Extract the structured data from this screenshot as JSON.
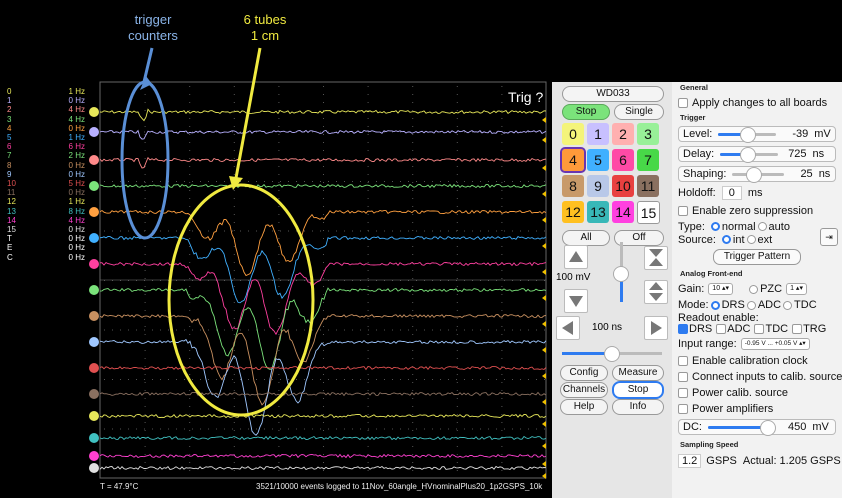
{
  "annotations": {
    "trigger_counters": [
      "trigger",
      "counters"
    ],
    "tubes": [
      "6 tubes",
      "1 cm"
    ]
  },
  "rates": [
    {
      "ch": "0",
      "val": "1 Hz",
      "color": "#e8e85a"
    },
    {
      "ch": "1",
      "val": "0 Hz",
      "color": "#b8b0ff"
    },
    {
      "ch": "2",
      "val": "4 Hz",
      "color": "#ff8a8a"
    },
    {
      "ch": "3",
      "val": "4 Hz",
      "color": "#7be37b"
    },
    {
      "ch": "4",
      "val": "0 Hz",
      "color": "#ffa040"
    },
    {
      "ch": "5",
      "val": "1 Hz",
      "color": "#40b0ff"
    },
    {
      "ch": "6",
      "val": "6 Hz",
      "color": "#ff40a0"
    },
    {
      "ch": "7",
      "val": "2 Hz",
      "color": "#7be37b"
    },
    {
      "ch": "8",
      "val": "0 Hz",
      "color": "#c89060"
    },
    {
      "ch": "9",
      "val": "0 Hz",
      "color": "#a0c8ff"
    },
    {
      "ch": "10",
      "val": "5 Hz",
      "color": "#e05050"
    },
    {
      "ch": "11",
      "val": "0 Hz",
      "color": "#8a7060"
    },
    {
      "ch": "12",
      "val": "1 Hz",
      "color": "#e8e85a"
    },
    {
      "ch": "13",
      "val": "8 Hz",
      "color": "#40c0c0"
    },
    {
      "ch": "14",
      "val": "4 Hz",
      "color": "#ff40d0"
    },
    {
      "ch": "15",
      "val": "0 Hz",
      "color": "#e0e0e0"
    },
    {
      "ch": "T",
      "val": "0 Hz",
      "color": "#ffffff"
    },
    {
      "ch": "E",
      "val": "0 Hz",
      "color": "#ffffff"
    },
    {
      "ch": "C",
      "val": "0 Hz",
      "color": "#ffffff"
    }
  ],
  "scope": {
    "trig_label": "Trig ?",
    "temperature": "T = 47.9°C",
    "status": "3521/10000 events logged to 11Nov_60angle_HVnominalPlus20_1p2GSPS_10k"
  },
  "controls": {
    "board": "WD033",
    "stop": "Stop",
    "single": "Single",
    "channels": [
      "0",
      "1",
      "2",
      "3",
      "4",
      "5",
      "6",
      "7",
      "8",
      "9",
      "10",
      "11",
      "12",
      "13",
      "14",
      "15"
    ],
    "all": "All",
    "off": "Off",
    "volt_div": "100 mV",
    "time_div": "100 ns",
    "config": "Config",
    "measure": "Measure",
    "channels_btn": "Channels",
    "stop2": "Stop",
    "help": "Help",
    "info": "Info"
  },
  "panel": {
    "general": "General",
    "apply_all": "Apply changes to all boards",
    "trigger": "Trigger",
    "level_label": "Level:",
    "level_value": "-39",
    "level_unit": "mV",
    "delay_label": "Delay:",
    "delay_value": "725",
    "delay_unit": "ns",
    "shaping_label": "Shaping:",
    "shaping_value": "25",
    "shaping_unit": "ns",
    "holdoff_label": "Holdoff:",
    "holdoff_value": "0",
    "holdoff_unit": "ms",
    "zero_supp": "Enable zero suppression",
    "type_label": "Type:",
    "type_normal": "normal",
    "type_auto": "auto",
    "source_label": "Source:",
    "source_int": "int",
    "source_ext": "ext",
    "trigger_pattern": "Trigger Pattern",
    "afe": "Analog Front-end",
    "gain_label": "Gain:",
    "gain_value": "10",
    "pzc": "PZC",
    "pzc_value": "1",
    "mode_label": "Mode:",
    "mode_drs": "DRS",
    "mode_adc": "ADC",
    "mode_tdc": "TDC",
    "readout_label": "Readout enable:",
    "ro_drs": "DRS",
    "ro_adc": "ADC",
    "ro_tdc": "TDC",
    "ro_trg": "TRG",
    "input_range_label": "Input range:",
    "input_range_value": "-0.95 V ... +0.05 V",
    "calib_clock": "Enable calibration clock",
    "connect_calib": "Connect inputs to calib. source",
    "power_calib": "Power calib. source",
    "power_amp": "Power amplifiers",
    "dc_label": "DC:",
    "dc_value": "450",
    "dc_unit": "mV",
    "sampling": "Sampling Speed",
    "gsps_value": "1.2",
    "gsps_unit": "GSPS",
    "actual": "Actual: 1.205 GSPS"
  }
}
